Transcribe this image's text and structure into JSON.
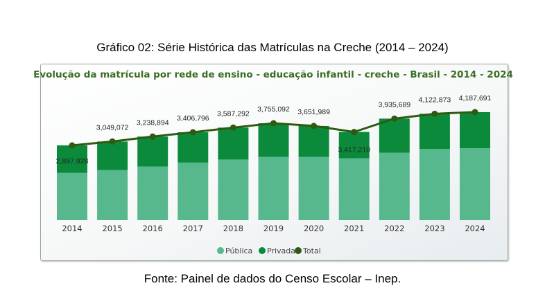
{
  "caption_top": "Gráfico 02: Série Histórica das Matrículas na Creche (2014 – 2024)",
  "caption_bottom": "Fonte: Painel de dados do Censo Escolar – Inep.",
  "colors": {
    "publica": "#57b78d",
    "privada": "#0c8a3c",
    "total": "#2f5a12",
    "title": "#3b6e22"
  },
  "chart_data": {
    "type": "bar",
    "title": "Evolução da matrícula por rede de ensino - educação infantil - creche - Brasil - 2014 - 2024",
    "categories": [
      "2014",
      "2015",
      "2016",
      "2017",
      "2018",
      "2019",
      "2020",
      "2021",
      "2022",
      "2023",
      "2024"
    ],
    "series": [
      {
        "name": "Pública",
        "type": "bar-stacked",
        "values": [
          1830000,
          1940000,
          2080000,
          2230000,
          2350000,
          2450000,
          2450000,
          2400000,
          2610000,
          2760000,
          2790000
        ]
      },
      {
        "name": "Privada",
        "type": "bar-stacked",
        "values": [
          1067928,
          1109072,
          1158894,
          1176796,
          1237292,
          1305092,
          1201989,
          1017210,
          1325689,
          1362873,
          1397691
        ]
      },
      {
        "name": "Total",
        "type": "line",
        "values": [
          2897928,
          3049072,
          3238894,
          3406796,
          3587292,
          3755092,
          3651989,
          3417210,
          3935689,
          4122873,
          4187691
        ]
      }
    ],
    "data_labels": [
      "2,897,928",
      "3,049,072",
      "3,238,894",
      "3,406,796",
      "3,587,292",
      "3,755,092",
      "3,651,989",
      "3,417,210",
      "3,935,689",
      "4,122,873",
      "4,187,691"
    ],
    "legend": [
      "Pública",
      "Privada",
      "Total"
    ],
    "legend_position": "bottom",
    "ylim": [
      0,
      4500000
    ],
    "grid": false
  }
}
